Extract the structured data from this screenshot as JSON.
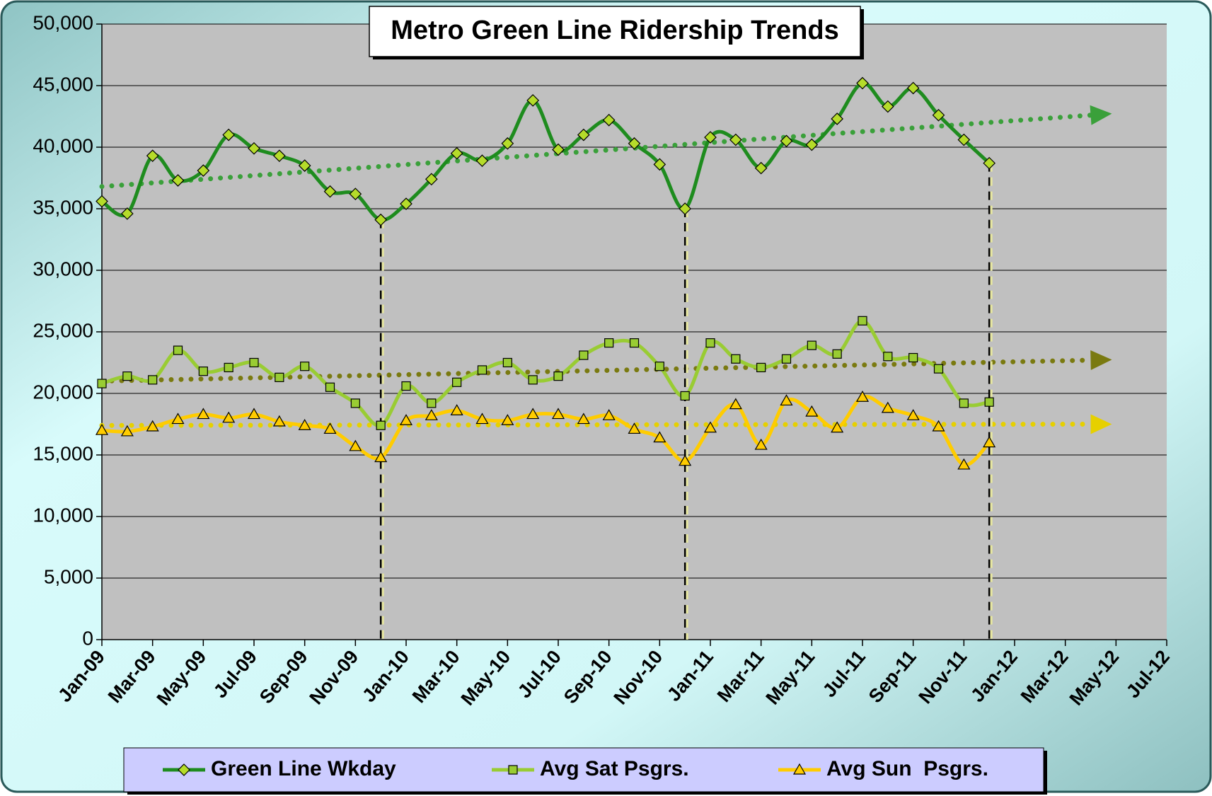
{
  "chart_data": {
    "type": "line",
    "title": "Metro Green Line Ridership Trends",
    "categories": [
      "Jan-09",
      null,
      "Mar-09",
      null,
      "May-09",
      null,
      "Jul-09",
      null,
      "Sep-09",
      null,
      "Nov-09",
      null,
      "Jan-10",
      null,
      "Mar-10",
      null,
      "May-10",
      null,
      "Jul-10",
      null,
      "Sep-10",
      null,
      "Nov-10",
      null,
      "Jan-11",
      null,
      "Mar-11",
      null,
      "May-11",
      null,
      "Jul-11",
      null,
      "Sep-11",
      null,
      "Nov-11",
      null,
      "Jan-12",
      null,
      "Mar-12",
      null,
      "May-12",
      null,
      "Jul-12"
    ],
    "series": [
      {
        "name": "Green Line Wkday",
        "color": "#1e8c1e",
        "marker": "diamond",
        "marker_color": "#b5dc2a",
        "values": [
          35600,
          34600,
          39300,
          37300,
          38100,
          41000,
          39900,
          39300,
          38500,
          36400,
          36200,
          34100,
          35400,
          37400,
          39500,
          38900,
          40300,
          43800,
          39800,
          41000,
          42200,
          40300,
          38600,
          35000,
          40800,
          40600,
          38300,
          40500,
          40200,
          42300,
          45200,
          43300,
          44800,
          42600,
          40600,
          38700,
          null,
          null,
          null,
          null,
          null,
          null,
          null
        ]
      },
      {
        "name": "Avg Sat Psgrs.",
        "color": "#99cc33",
        "marker": "square",
        "marker_color": "#99cc33",
        "values": [
          20800,
          21400,
          21100,
          23500,
          21800,
          22100,
          22500,
          21300,
          22200,
          20500,
          19200,
          17400,
          20600,
          19200,
          20900,
          21900,
          22500,
          21100,
          21400,
          23100,
          24100,
          24100,
          22200,
          19800,
          24100,
          22800,
          22100,
          22800,
          23900,
          23200,
          25900,
          23000,
          22900,
          22000,
          19200,
          19300,
          null,
          null,
          null,
          null,
          null,
          null,
          null
        ]
      },
      {
        "name": "Avg Sun  Psgrs.",
        "color": "#ffcc00",
        "marker": "triangle",
        "marker_color": "#ffcc00",
        "values": [
          17000,
          16900,
          17300,
          17900,
          18300,
          18000,
          18300,
          17700,
          17400,
          17100,
          15700,
          14800,
          17800,
          18200,
          18600,
          17900,
          17800,
          18300,
          18300,
          17900,
          18200,
          17100,
          16400,
          14500,
          17200,
          19100,
          15800,
          19400,
          18500,
          17200,
          19700,
          18800,
          18200,
          17300,
          14200,
          16000,
          null,
          null,
          null,
          null,
          null,
          null,
          null
        ]
      }
    ],
    "trendlines": [
      {
        "color": "#3aa03a",
        "start": 36800,
        "end": 42600
      },
      {
        "color": "#7a7a10",
        "start": 21000,
        "end": 22700
      },
      {
        "color": "#e6d000",
        "start": 17400,
        "end": 17500
      }
    ],
    "ylim": [
      0,
      50000
    ],
    "yticks": [
      0,
      {
        "value": 5000,
        "label": "5,000"
      },
      {
        "value": 10000,
        "label": "10,000"
      },
      {
        "value": 15000,
        "label": "15,000"
      },
      {
        "value": 20000,
        "label": "20,000"
      },
      {
        "value": 25000,
        "label": "25,000"
      },
      {
        "value": 30000,
        "label": "30,000"
      },
      {
        "value": 35000,
        "label": "35,000"
      },
      {
        "value": 40000,
        "label": "40,000"
      },
      {
        "value": 45000,
        "label": "45,000"
      },
      {
        "value": 50000,
        "label": "50,000"
      }
    ],
    "grid": true
  }
}
